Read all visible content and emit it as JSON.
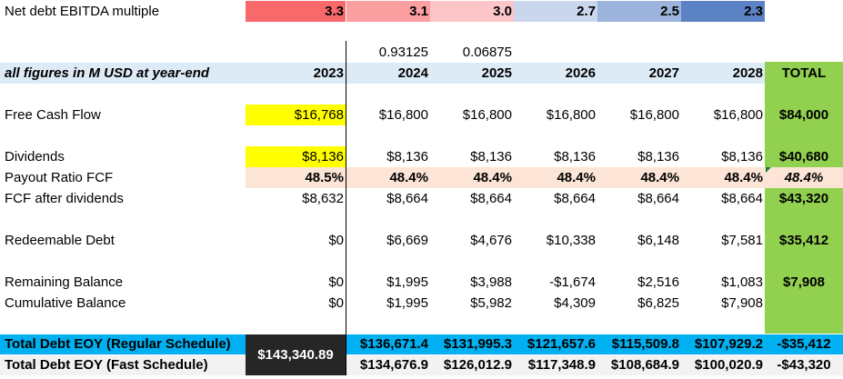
{
  "ebitda_row": {
    "label": "Net debt EBITDA multiple",
    "values": [
      "3.3",
      "3.1",
      "3.0",
      "2.7",
      "2.5",
      "2.3"
    ],
    "colors": [
      "#f8696b",
      "#fb9fa1",
      "#fcc6c8",
      "#c9d6ec",
      "#9cb4dc",
      "#5b82c4"
    ]
  },
  "fractions": [
    "0.93125",
    "0.06875"
  ],
  "header": {
    "label": "all figures in M USD at year-end",
    "years": [
      "2023",
      "2024",
      "2025",
      "2026",
      "2027",
      "2028"
    ],
    "total": "TOTAL"
  },
  "rows": {
    "fcf": {
      "label": "Free Cash Flow",
      "values": [
        "$16,768",
        "$16,800",
        "$16,800",
        "$16,800",
        "$16,800",
        "$16,800"
      ],
      "total": "$84,000"
    },
    "dividends": {
      "label": "Dividends",
      "values": [
        "$8,136",
        "$8,136",
        "$8,136",
        "$8,136",
        "$8,136",
        "$8,136"
      ],
      "total": "$40,680"
    },
    "payout": {
      "label": "Payout Ratio FCF",
      "values": [
        "48.5%",
        "48.4%",
        "48.4%",
        "48.4%",
        "48.4%",
        "48.4%"
      ],
      "total": "48.4%"
    },
    "fcf_after": {
      "label": "FCF after dividends",
      "values": [
        "$8,632",
        "$8,664",
        "$8,664",
        "$8,664",
        "$8,664",
        "$8,664"
      ],
      "total": "$43,320"
    },
    "redeemable": {
      "label": "Redeemable Debt",
      "values": [
        "$0",
        "$6,669",
        "$4,676",
        "$10,338",
        "$6,148",
        "$7,581"
      ],
      "total": "$35,412"
    },
    "remaining": {
      "label": "Remaining Balance",
      "values": [
        "$0",
        "$1,995",
        "$3,988",
        "-$1,674",
        "$2,516",
        "$1,083"
      ],
      "total": "$7,908"
    },
    "cumulative": {
      "label": "Cumulative Balance",
      "values": [
        "$0",
        "$1,995",
        "$5,982",
        "$4,309",
        "$6,825",
        "$7,908"
      ]
    },
    "debt_regular": {
      "label": "Total Debt EOY (Regular Schedule)",
      "values": [
        "$136,671.4",
        "$131,995.3",
        "$121,657.6",
        "$115,509.8",
        "$107,929.2"
      ],
      "total": "-$35,412"
    },
    "debt_fast": {
      "label": "Total Debt EOY (Fast Schedule)",
      "values": [
        "$134,676.9",
        "$126,012.9",
        "$117,348.9",
        "$108,684.9",
        "$100,020.9"
      ],
      "total": "-$43,320"
    }
  },
  "debt_2023": "$143,340.89",
  "colors": {
    "highlight_yellow": "#ffff00",
    "header_blue": "#ddebf7",
    "payout_peach": "#fce4d6",
    "total_green": "#92d050",
    "regular_blue": "#00b0f0",
    "fast_gray": "#f2f2f2",
    "dark_cell": "#262626"
  }
}
